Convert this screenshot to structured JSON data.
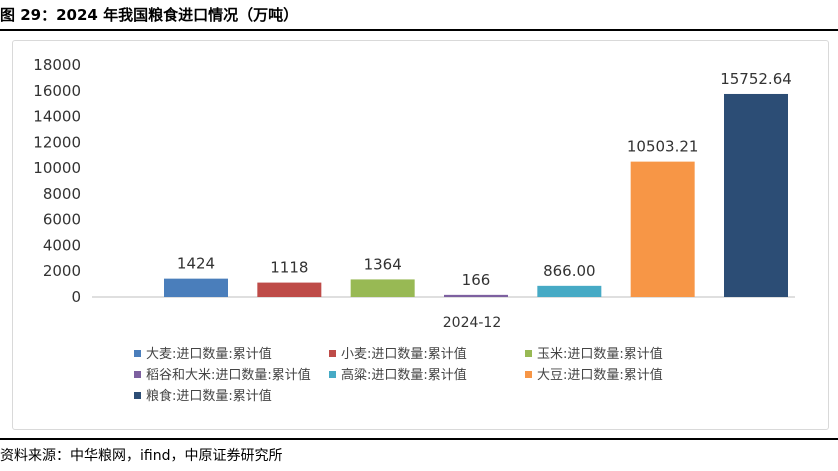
{
  "header": {
    "title": "图 29：2024 年我国粮食进口情况（万吨）"
  },
  "footer": {
    "source": "资料来源：中华粮网，ifind，中原证券研究所"
  },
  "chart_data": {
    "type": "bar",
    "title": "",
    "xlabel": "",
    "ylabel": "",
    "ylim": [
      0,
      18000
    ],
    "yticks": [
      0,
      2000,
      4000,
      6000,
      8000,
      10000,
      12000,
      14000,
      16000,
      18000
    ],
    "categories": [
      "2024-12"
    ],
    "grid": false,
    "legend_position": "bottom",
    "series": [
      {
        "name": "大麦:进口数量:累计值",
        "values": [
          1424
        ],
        "label": "1424",
        "color": "#4a7ebb"
      },
      {
        "name": "小麦:进口数量:累计值",
        "values": [
          1118
        ],
        "label": "1118",
        "color": "#be4b48"
      },
      {
        "name": "玉米:进口数量:累计值",
        "values": [
          1364
        ],
        "label": "1364",
        "color": "#98b954"
      },
      {
        "name": "稻谷和大米:进口数量:累计值",
        "values": [
          166
        ],
        "label": "166",
        "color": "#7d60a0"
      },
      {
        "name": "高粱:进口数量:累计值",
        "values": [
          866.0
        ],
        "label": "866.00",
        "color": "#46aac5"
      },
      {
        "name": "大豆:进口数量:累计值",
        "values": [
          10503.21
        ],
        "label": "10503.21",
        "color": "#f79646"
      },
      {
        "name": "粮食:进口数量:累计值",
        "values": [
          15752.64
        ],
        "label": "15752.64",
        "color": "#2c4d75"
      }
    ]
  }
}
